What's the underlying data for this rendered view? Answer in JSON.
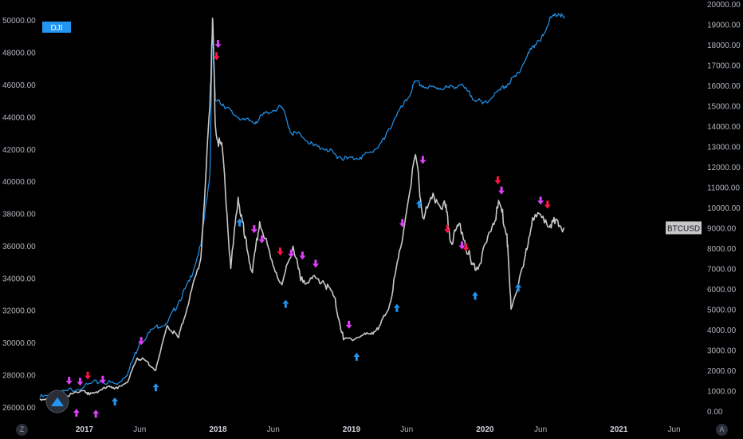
{
  "chart_data": {
    "type": "line",
    "left_axis": {
      "ticks": [
        "50000.00",
        "48000.00",
        "46000.00",
        "44000.00",
        "42000.00",
        "40000.00",
        "38000.00",
        "36000.00",
        "34000.00",
        "32000.00",
        "30000.00",
        "28000.00",
        "26000.00"
      ],
      "range": [
        25500,
        51000
      ]
    },
    "right_axis": {
      "ticks": [
        "20000.00",
        "19000.00",
        "18000.00",
        "17000.00",
        "16000.00",
        "15000.00",
        "14000.00",
        "13000.00",
        "12000.00",
        "11000.00",
        "10000.00",
        "9000.00",
        "8000.00",
        "7000.00",
        "6000.00",
        "5000.00",
        "4000.00",
        "3000.00",
        "2000.00",
        "1000.00",
        "0.00"
      ],
      "range": [
        -200,
        20000
      ]
    },
    "x_axis": {
      "ticks": [
        {
          "label": "2017",
          "bold": true
        },
        {
          "label": "Jun",
          "bold": false
        },
        {
          "label": "2018",
          "bold": true
        },
        {
          "label": "Jun",
          "bold": false
        },
        {
          "label": "2019",
          "bold": true
        },
        {
          "label": "Jun",
          "bold": false
        },
        {
          "label": "2020",
          "bold": true
        },
        {
          "label": "Jun",
          "bold": false
        },
        {
          "label": "2021",
          "bold": true
        },
        {
          "label": "Jun",
          "bold": false
        }
      ],
      "range": [
        "2016-09-01",
        "2021-08-15"
      ]
    },
    "series": [
      {
        "name": "DJI",
        "axis": "left",
        "color": "#2196f3",
        "points": [
          [
            "2016-09-01",
            26600
          ],
          [
            "2016-10-15",
            26700
          ],
          [
            "2016-11-15",
            27000
          ],
          [
            "2017-01-01",
            27300
          ],
          [
            "2017-02-15",
            27600
          ],
          [
            "2017-04-01",
            27400
          ],
          [
            "2017-05-01",
            28200
          ],
          [
            "2017-06-01",
            30000
          ],
          [
            "2017-07-15",
            31000
          ],
          [
            "2017-08-15",
            31200
          ],
          [
            "2017-09-15",
            32500
          ],
          [
            "2017-10-15",
            33800
          ],
          [
            "2017-11-15",
            36000
          ],
          [
            "2017-12-10",
            40500
          ],
          [
            "2017-12-17",
            49500
          ],
          [
            "2017-12-25",
            45000
          ],
          [
            "2018-01-15",
            44800
          ],
          [
            "2018-02-10",
            44200
          ],
          [
            "2018-03-15",
            43800
          ],
          [
            "2018-04-15",
            43700
          ],
          [
            "2018-05-15",
            44300
          ],
          [
            "2018-06-25",
            44600
          ],
          [
            "2018-07-20",
            43000
          ],
          [
            "2018-08-15",
            42900
          ],
          [
            "2018-09-20",
            42200
          ],
          [
            "2018-10-25",
            42000
          ],
          [
            "2018-11-20",
            41600
          ],
          [
            "2018-12-20",
            41400
          ],
          [
            "2019-01-25",
            41500
          ],
          [
            "2019-02-25",
            41800
          ],
          [
            "2019-04-01",
            42600
          ],
          [
            "2019-05-01",
            44000
          ],
          [
            "2019-06-01",
            45000
          ],
          [
            "2019-06-25",
            46200
          ],
          [
            "2019-07-25",
            45800
          ],
          [
            "2019-08-25",
            45800
          ],
          [
            "2019-09-25",
            45800
          ],
          [
            "2019-10-25",
            46000
          ],
          [
            "2019-11-25",
            45300
          ],
          [
            "2019-12-25",
            44800
          ],
          [
            "2020-01-25",
            45300
          ],
          [
            "2020-02-25",
            45900
          ],
          [
            "2020-03-25",
            46500
          ],
          [
            "2020-04-20",
            47500
          ],
          [
            "2020-05-10",
            48400
          ],
          [
            "2020-06-01",
            48700
          ],
          [
            "2020-06-25",
            50000
          ],
          [
            "2020-07-20",
            50400
          ],
          [
            "2020-08-05",
            50100
          ]
        ]
      },
      {
        "name": "BTCUSD",
        "axis": "right",
        "color": "#c8c8c8",
        "points": [
          [
            "2016-09-01",
            600
          ],
          [
            "2016-10-15",
            640
          ],
          [
            "2016-11-15",
            740
          ],
          [
            "2017-01-01",
            1000
          ],
          [
            "2017-01-15",
            800
          ],
          [
            "2017-02-15",
            1050
          ],
          [
            "2017-03-15",
            1200
          ],
          [
            "2017-04-01",
            1100
          ],
          [
            "2017-05-01",
            1500
          ],
          [
            "2017-05-25",
            2600
          ],
          [
            "2017-06-15",
            2500
          ],
          [
            "2017-07-15",
            2000
          ],
          [
            "2017-08-15",
            4200
          ],
          [
            "2017-09-15",
            3600
          ],
          [
            "2017-10-15",
            5500
          ],
          [
            "2017-11-15",
            7500
          ],
          [
            "2017-12-10",
            15000
          ],
          [
            "2017-12-17",
            19300
          ],
          [
            "2017-12-25",
            14000
          ],
          [
            "2018-01-15",
            12500
          ],
          [
            "2018-02-05",
            7000
          ],
          [
            "2018-02-25",
            10500
          ],
          [
            "2018-03-15",
            8500
          ],
          [
            "2018-04-05",
            6800
          ],
          [
            "2018-04-25",
            9300
          ],
          [
            "2018-05-25",
            7500
          ],
          [
            "2018-06-25",
            6200
          ],
          [
            "2018-07-25",
            8100
          ],
          [
            "2018-08-15",
            6400
          ],
          [
            "2018-09-15",
            6500
          ],
          [
            "2018-10-15",
            6400
          ],
          [
            "2018-11-15",
            5600
          ],
          [
            "2018-12-10",
            3500
          ],
          [
            "2019-01-15",
            3600
          ],
          [
            "2019-02-15",
            3800
          ],
          [
            "2019-03-15",
            4000
          ],
          [
            "2019-04-15",
            5200
          ],
          [
            "2019-05-15",
            8000
          ],
          [
            "2019-06-25",
            12600
          ],
          [
            "2019-07-15",
            9500
          ],
          [
            "2019-08-15",
            10500
          ],
          [
            "2019-09-15",
            10000
          ],
          [
            "2019-09-30",
            8300
          ],
          [
            "2019-10-25",
            9200
          ],
          [
            "2019-11-25",
            7200
          ],
          [
            "2019-12-15",
            7100
          ],
          [
            "2020-01-15",
            8800
          ],
          [
            "2020-02-10",
            10200
          ],
          [
            "2020-03-01",
            8700
          ],
          [
            "2020-03-12",
            5000
          ],
          [
            "2020-04-15",
            7100
          ],
          [
            "2020-05-10",
            9500
          ],
          [
            "2020-06-15",
            9400
          ],
          [
            "2020-07-10",
            9200
          ],
          [
            "2020-08-05",
            9000
          ]
        ]
      }
    ],
    "labels": {
      "dji_tag": "DJI",
      "btc_tag": "BTCUSD",
      "btc_tag_value": 9000
    },
    "signals": [
      {
        "kind": "pink-down",
        "date": "2016-11-20",
        "v": 1250
      },
      {
        "kind": "pink-down",
        "date": "2016-12-20",
        "v": 1200
      },
      {
        "kind": "red-down",
        "date": "2017-01-10",
        "v": 1500
      },
      {
        "kind": "pink-down",
        "date": "2017-02-20",
        "v": 1300
      },
      {
        "kind": "pink-up",
        "date": "2016-12-10",
        "v": 150
      },
      {
        "kind": "pink-up",
        "date": "2017-02-01",
        "v": 100
      },
      {
        "kind": "blue-up",
        "date": "2017-03-25",
        "v": 700
      },
      {
        "kind": "pink-down",
        "date": "2017-06-05",
        "v": 3200
      },
      {
        "kind": "blue-up",
        "date": "2017-07-15",
        "v": 1400
      },
      {
        "kind": "pink-down",
        "date": "2018-01-01",
        "v": 17800
      },
      {
        "kind": "red-down",
        "date": "2017-12-28",
        "v": 17200
      },
      {
        "kind": "blue-up",
        "date": "2018-03-01",
        "v": 9500
      },
      {
        "kind": "pink-down",
        "date": "2018-04-10",
        "v": 8700
      },
      {
        "kind": "pink-down",
        "date": "2018-05-01",
        "v": 8200
      },
      {
        "kind": "red-down",
        "date": "2018-06-20",
        "v": 7600
      },
      {
        "kind": "blue-up",
        "date": "2018-07-05",
        "v": 5500
      },
      {
        "kind": "pink-down",
        "date": "2018-07-20",
        "v": 7500
      },
      {
        "kind": "pink-down",
        "date": "2018-08-20",
        "v": 7400
      },
      {
        "kind": "pink-down",
        "date": "2018-09-25",
        "v": 7000
      },
      {
        "kind": "pink-down",
        "date": "2018-12-25",
        "v": 4000
      },
      {
        "kind": "blue-up",
        "date": "2019-01-15",
        "v": 2900
      },
      {
        "kind": "pink-down",
        "date": "2019-05-20",
        "v": 9000
      },
      {
        "kind": "blue-up",
        "date": "2019-05-05",
        "v": 5300
      },
      {
        "kind": "pink-down",
        "date": "2019-07-15",
        "v": 12100
      },
      {
        "kind": "blue-up",
        "date": "2019-07-05",
        "v": 10400
      },
      {
        "kind": "red-down",
        "date": "2019-09-20",
        "v": 8700
      },
      {
        "kind": "pink-down",
        "date": "2019-10-30",
        "v": 7900
      },
      {
        "kind": "red-down",
        "date": "2019-11-10",
        "v": 7800
      },
      {
        "kind": "blue-up",
        "date": "2019-12-05",
        "v": 5900
      },
      {
        "kind": "red-down",
        "date": "2020-02-05",
        "v": 11100
      },
      {
        "kind": "pink-down",
        "date": "2020-02-15",
        "v": 10600
      },
      {
        "kind": "blue-up",
        "date": "2020-04-01",
        "v": 6300
      },
      {
        "kind": "pink-down",
        "date": "2020-06-01",
        "v": 10100
      },
      {
        "kind": "red-down",
        "date": "2020-06-20",
        "v": 9900
      }
    ]
  }
}
